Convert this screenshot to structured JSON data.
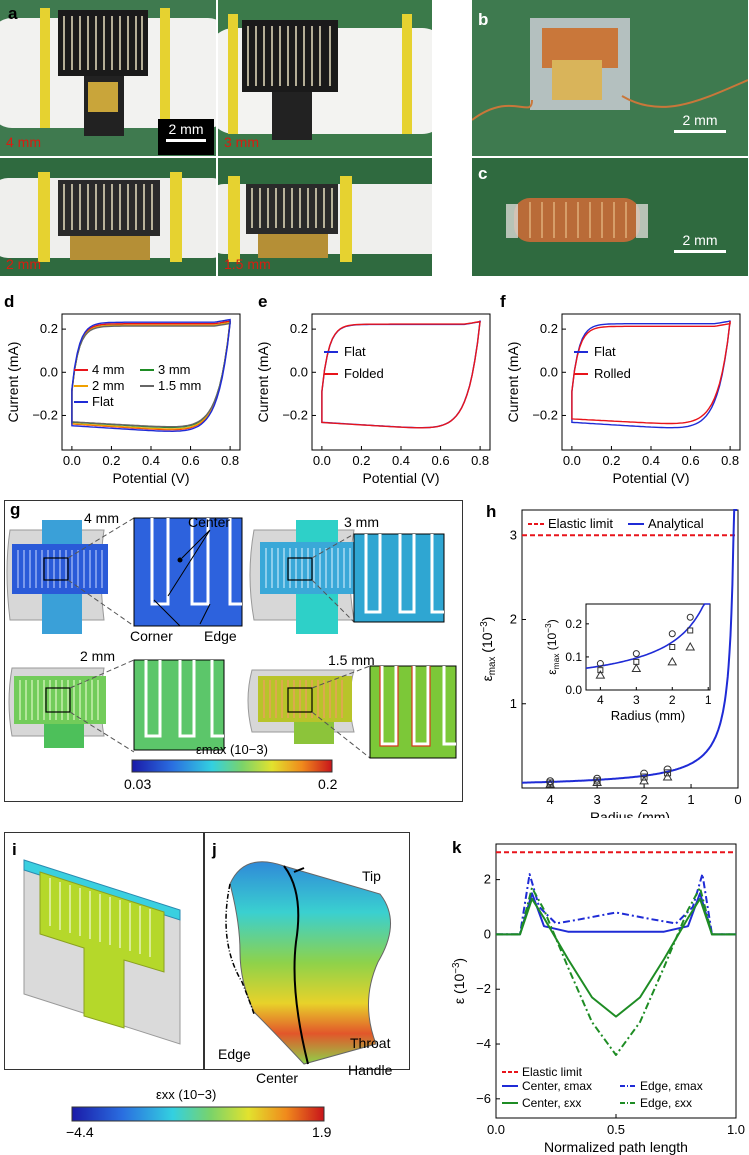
{
  "panels": {
    "a": "a",
    "b": "b",
    "c": "c",
    "d": "d",
    "e": "e",
    "f": "f",
    "g": "g",
    "h": "h",
    "i": "i",
    "j": "j",
    "k": "k"
  },
  "photos": {
    "a_labels": [
      "4 mm",
      "3 mm",
      "2 mm",
      "1.5 mm"
    ],
    "a_scale": "2 mm",
    "b_scale": "2 mm",
    "c_scale": "2 mm"
  },
  "fem_g": {
    "labels": [
      "4 mm",
      "3 mm",
      "2 mm",
      "1.5 mm"
    ],
    "callouts": {
      "center": "Center",
      "corner": "Corner",
      "edge": "Edge"
    },
    "colorbar": {
      "title": "εmax (10−3)",
      "min": "0.03",
      "max": "0.2"
    }
  },
  "fem_ij": {
    "labels": {
      "tip": "Tip",
      "throat": "Throat",
      "handle": "Handle",
      "edge": "Edge",
      "center": "Center"
    },
    "colorbar": {
      "title": "εxx (10−3)",
      "min": "−4.4",
      "max": "1.9"
    }
  },
  "colors": {
    "blue": "#1f2bd6",
    "red": "#e8141b",
    "green": "#1e8c24",
    "orange": "#f0a000",
    "gray": "#666666",
    "dark": "#222222"
  },
  "chart_data": [
    {
      "id": "d",
      "type": "line",
      "xlabel": "Potential (V)",
      "ylabel": "Current (mA)",
      "xlim": [
        -0.05,
        0.85
      ],
      "ylim": [
        -0.36,
        0.27
      ],
      "xticks": [
        "0.0",
        "0.2",
        "0.4",
        "0.6",
        "0.8"
      ],
      "yticks": [
        "0.2",
        "0.0",
        "−0.2"
      ],
      "ytick_values": [
        0.2,
        0.0,
        -0.2
      ],
      "xtick_values": [
        0.0,
        0.2,
        0.4,
        0.6,
        0.8
      ],
      "legend_position": "center",
      "series": [
        {
          "name": "4 mm",
          "color": "#e8141b",
          "upper": 0.225,
          "lower": -0.335
        },
        {
          "name": "3 mm",
          "color": "#1e8c24",
          "upper": 0.215,
          "lower": -0.32
        },
        {
          "name": "2 mm",
          "color": "#f0a000",
          "upper": 0.212,
          "lower": -0.325
        },
        {
          "name": "1.5 mm",
          "color": "#666666",
          "upper": 0.205,
          "lower": -0.31
        },
        {
          "name": "Flat",
          "color": "#1f2bd6",
          "upper": 0.22,
          "lower": -0.33
        }
      ]
    },
    {
      "id": "e",
      "type": "line",
      "xlabel": "Potential (V)",
      "ylabel": "Current (mA)",
      "xlim": [
        -0.05,
        0.85
      ],
      "ylim": [
        -0.36,
        0.27
      ],
      "xticks": [
        "0.0",
        "0.2",
        "0.4",
        "0.6",
        "0.8"
      ],
      "yticks": [
        "0.2",
        "0.0",
        "−0.2"
      ],
      "ytick_values": [
        0.2,
        0.0,
        -0.2
      ],
      "xtick_values": [
        0.0,
        0.2,
        0.4,
        0.6,
        0.8
      ],
      "legend_position": "center",
      "series": [
        {
          "name": "Flat",
          "color": "#1f2bd6",
          "upper": 0.222,
          "lower": -0.325
        },
        {
          "name": "Folded",
          "color": "#e8141b",
          "upper": 0.22,
          "lower": -0.322
        }
      ]
    },
    {
      "id": "f",
      "type": "line",
      "xlabel": "Potential (V)",
      "ylabel": "Current (mA)",
      "xlim": [
        -0.05,
        0.85
      ],
      "ylim": [
        -0.36,
        0.27
      ],
      "xticks": [
        "0.0",
        "0.2",
        "0.4",
        "0.6",
        "0.8"
      ],
      "yticks": [
        "0.2",
        "0.0",
        "−0.2"
      ],
      "ytick_values": [
        0.2,
        0.0,
        -0.2
      ],
      "xtick_values": [
        0.0,
        0.2,
        0.4,
        0.6,
        0.8
      ],
      "legend_position": "center",
      "series": [
        {
          "name": "Flat",
          "color": "#1f2bd6",
          "upper": 0.225,
          "lower": -0.325
        },
        {
          "name": "Rolled",
          "color": "#e8141b",
          "upper": 0.21,
          "lower": -0.3
        }
      ]
    },
    {
      "id": "h",
      "type": "line",
      "xlabel": "Radius (mm)",
      "ylabel": "εmax (10−3)",
      "xlim": [
        4.6,
        0
      ],
      "ylim": [
        0,
        3.3
      ],
      "xticks": [
        "4",
        "3",
        "2",
        "1",
        "0"
      ],
      "xtick_values": [
        4,
        3,
        2,
        1,
        0
      ],
      "yticks": [
        "1",
        "2",
        "3"
      ],
      "ytick_values": [
        1,
        2,
        3
      ],
      "elastic_limit": 3.0,
      "legend": [
        "Elastic limit",
        "Analytical"
      ],
      "analytical_coeff": 0.29,
      "markers": {
        "radius": [
          4,
          3,
          2,
          1.5
        ],
        "circle": [
          0.08,
          0.11,
          0.17,
          0.22
        ],
        "square": [
          0.06,
          0.085,
          0.13,
          0.18
        ],
        "triangle": [
          0.045,
          0.065,
          0.085,
          0.13
        ]
      },
      "inset": {
        "xlabel": "Radius (mm)",
        "ylabel": "εmax (10−3)",
        "xlim": [
          4.4,
          0.95
        ],
        "ylim": [
          0,
          0.26
        ],
        "xticks": [
          "4",
          "3",
          "2",
          "1"
        ],
        "xtick_values": [
          4,
          3,
          2,
          1
        ],
        "yticks": [
          "0.0",
          "0.1",
          "0.2"
        ],
        "ytick_values": [
          0,
          0.1,
          0.2
        ]
      }
    },
    {
      "id": "k",
      "type": "line",
      "xlabel": "Normalized path length",
      "ylabel": "ε (10−3)",
      "xlim": [
        0,
        1
      ],
      "ylim": [
        -6.7,
        3.3
      ],
      "xticks": [
        "0.0",
        "0.5",
        "1.0"
      ],
      "xtick_values": [
        0,
        0.5,
        1
      ],
      "yticks": [
        "2",
        "0",
        "−2",
        "−4",
        "−6"
      ],
      "ytick_values": [
        2,
        0,
        -2,
        -4,
        -6
      ],
      "elastic_limit": 3.0,
      "legend": [
        "Elastic limit",
        "Center, εmax",
        "Edge, εmax",
        "Center, εxx",
        "Edge, εxx"
      ],
      "series": [
        {
          "name": "Center, εmax",
          "color": "#1f2bd6",
          "style": "solid",
          "x": [
            0,
            0.1,
            0.15,
            0.2,
            0.3,
            0.5,
            0.7,
            0.8,
            0.85,
            0.9,
            1.0
          ],
          "y": [
            0,
            0,
            1.5,
            0.3,
            0.1,
            0.1,
            0.1,
            0.3,
            1.5,
            0,
            0
          ]
        },
        {
          "name": "Edge, εmax",
          "color": "#1f2bd6",
          "style": "dashdot",
          "x": [
            0,
            0.1,
            0.14,
            0.18,
            0.25,
            0.35,
            0.5,
            0.65,
            0.75,
            0.82,
            0.86,
            0.9,
            1.0
          ],
          "y": [
            0,
            0,
            2.2,
            1.0,
            0.4,
            0.55,
            0.8,
            0.55,
            0.4,
            1.0,
            2.2,
            0,
            0
          ]
        },
        {
          "name": "Center, εxx",
          "color": "#1e8c24",
          "style": "solid",
          "x": [
            0,
            0.1,
            0.15,
            0.2,
            0.3,
            0.4,
            0.5,
            0.6,
            0.7,
            0.8,
            0.85,
            0.9,
            1.0
          ],
          "y": [
            0,
            0,
            1.3,
            0.6,
            -0.9,
            -2.3,
            -3.0,
            -2.3,
            -0.9,
            0.6,
            1.3,
            0,
            0
          ]
        },
        {
          "name": "Edge, εxx",
          "color": "#1e8c24",
          "style": "dashdot",
          "x": [
            0,
            0.1,
            0.15,
            0.2,
            0.3,
            0.4,
            0.5,
            0.6,
            0.7,
            0.8,
            0.85,
            0.9,
            1.0
          ],
          "y": [
            0,
            0,
            1.7,
            0.9,
            -1.2,
            -3.2,
            -4.4,
            -3.2,
            -1.2,
            0.9,
            1.7,
            0,
            0
          ]
        }
      ]
    }
  ]
}
